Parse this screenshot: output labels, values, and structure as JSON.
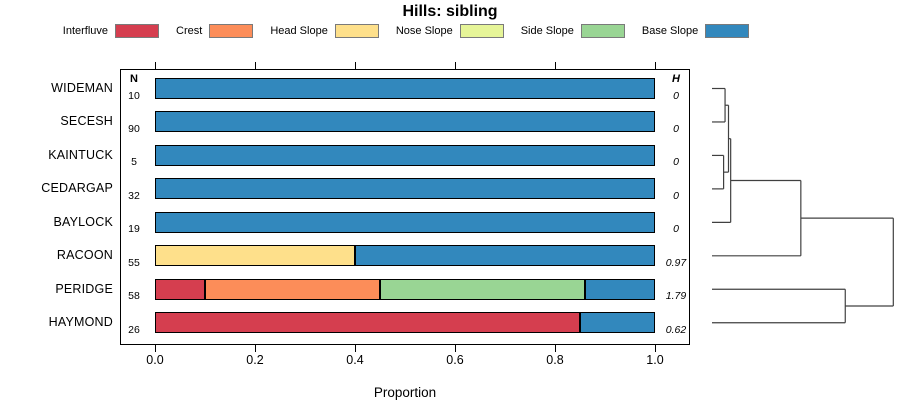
{
  "title": "Hills: sibling",
  "labels": {
    "n_header": "N",
    "h_header": "H"
  },
  "chart_data": {
    "type": "bar",
    "orientation": "horizontal",
    "stacked": true,
    "title": "Hills: sibling",
    "xlabel": "Proportion",
    "xlim": [
      0,
      1
    ],
    "xticks": [
      "0.0",
      "0.2",
      "0.4",
      "0.6",
      "0.8",
      "1.0"
    ],
    "legend_position": "top",
    "categories": [
      "Interfluve",
      "Crest",
      "Head Slope",
      "Nose Slope",
      "Side Slope",
      "Base Slope"
    ],
    "colors": {
      "Interfluve": "#D53E4F",
      "Crest": "#FC8D59",
      "Head Slope": "#FEE08B",
      "Nose Slope": "#E6F598",
      "Side Slope": "#99D594",
      "Base Slope": "#3288BD"
    },
    "rows": [
      {
        "label": "WIDEMAN",
        "n": "10",
        "h": "0",
        "segments": [
          [
            "Base Slope",
            1.0
          ]
        ]
      },
      {
        "label": "SECESH",
        "n": "90",
        "h": "0",
        "segments": [
          [
            "Base Slope",
            1.0
          ]
        ]
      },
      {
        "label": "KAINTUCK",
        "n": "5",
        "h": "0",
        "segments": [
          [
            "Base Slope",
            1.0
          ]
        ]
      },
      {
        "label": "CEDARGAP",
        "n": "32",
        "h": "0",
        "segments": [
          [
            "Base Slope",
            1.0
          ]
        ]
      },
      {
        "label": "BAYLOCK",
        "n": "19",
        "h": "0",
        "segments": [
          [
            "Base Slope",
            1.0
          ]
        ]
      },
      {
        "label": "RACOON",
        "n": "55",
        "h": "0.97",
        "segments": [
          [
            "Head Slope",
            0.4
          ],
          [
            "Base Slope",
            0.6
          ]
        ]
      },
      {
        "label": "PERIDGE",
        "n": "58",
        "h": "1.79",
        "segments": [
          [
            "Interfluve",
            0.1
          ],
          [
            "Crest",
            0.35
          ],
          [
            "Side Slope",
            0.41
          ],
          [
            "Base Slope",
            0.14
          ]
        ]
      },
      {
        "label": "HAYMOND",
        "n": "26",
        "h": "0.62",
        "segments": [
          [
            "Interfluve",
            0.85
          ],
          [
            "Base Slope",
            0.15
          ]
        ]
      }
    ],
    "dendrogram": {
      "h": 1.0,
      "children": [
        {
          "h": 0.49,
          "children": [
            {
              "h": 0.103,
              "children": [
                {
                  "h": 0.091,
                  "children": [
                    {
                      "h": 0.072,
                      "children": [
                        {
                          "leaf": "WIDEMAN"
                        },
                        {
                          "leaf": "SECESH"
                        }
                      ]
                    },
                    {
                      "h": 0.064,
                      "children": [
                        {
                          "leaf": "KAINTUCK"
                        },
                        {
                          "leaf": "CEDARGAP"
                        }
                      ]
                    }
                  ]
                },
                {
                  "leaf": "BAYLOCK"
                }
              ]
            },
            {
              "leaf": "RACOON"
            }
          ]
        },
        {
          "h": 0.735,
          "children": [
            {
              "leaf": "PERIDGE"
            },
            {
              "leaf": "HAYMOND"
            }
          ]
        }
      ]
    }
  }
}
